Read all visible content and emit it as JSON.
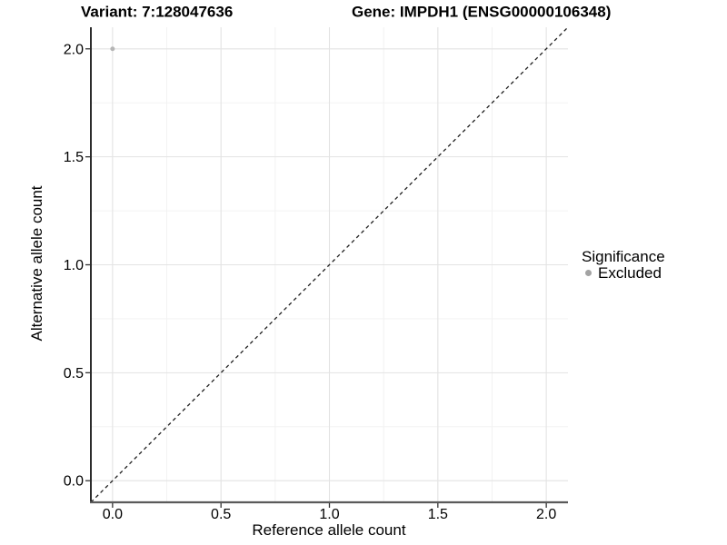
{
  "titles": {
    "left": "Variant: 7:128047636",
    "right": "Gene: IMPDH1 (ENSG00000106348)"
  },
  "legend": {
    "title": "Significance",
    "entries": [
      {
        "label": "Excluded",
        "color": "#a3a3a3"
      }
    ],
    "position": "right"
  },
  "chart_data": {
    "type": "scatter",
    "title": "Variant: 7:128047636    Gene: IMPDH1 (ENSG00000106348)",
    "xlabel": "Reference allele count",
    "ylabel": "Alternative allele count",
    "xlim": [
      -0.1,
      2.1
    ],
    "ylim": [
      -0.1,
      2.1
    ],
    "x_ticks": [
      0.0,
      0.5,
      1.0,
      1.5,
      2.0
    ],
    "y_ticks": [
      0.0,
      0.5,
      1.0,
      1.5,
      2.0
    ],
    "x_minor_ticks": [
      0.25,
      0.75,
      1.25,
      1.75
    ],
    "y_minor_ticks": [
      0.25,
      0.75,
      1.25,
      1.75
    ],
    "grid": true,
    "legend_position": "right",
    "series": [
      {
        "name": "Excluded",
        "color": "#b5b5b5",
        "points": [
          {
            "x": 0.0,
            "y": 2.0
          }
        ]
      }
    ],
    "reference_line": {
      "type": "identity",
      "slope": 1,
      "intercept": 0,
      "linestyle": "dashed",
      "color": "#1f1f1f"
    }
  },
  "colors": {
    "background": "#ffffff",
    "grid_major": "#e3e3e3",
    "grid_minor": "#f1f1f1",
    "axis_left": "#141414",
    "axis_bottom": "#5a5a5a",
    "tick_mark": "#333333",
    "tick_label": "#262626",
    "point": "#b5b5b5",
    "legend_dot": "#a3a3a3"
  }
}
